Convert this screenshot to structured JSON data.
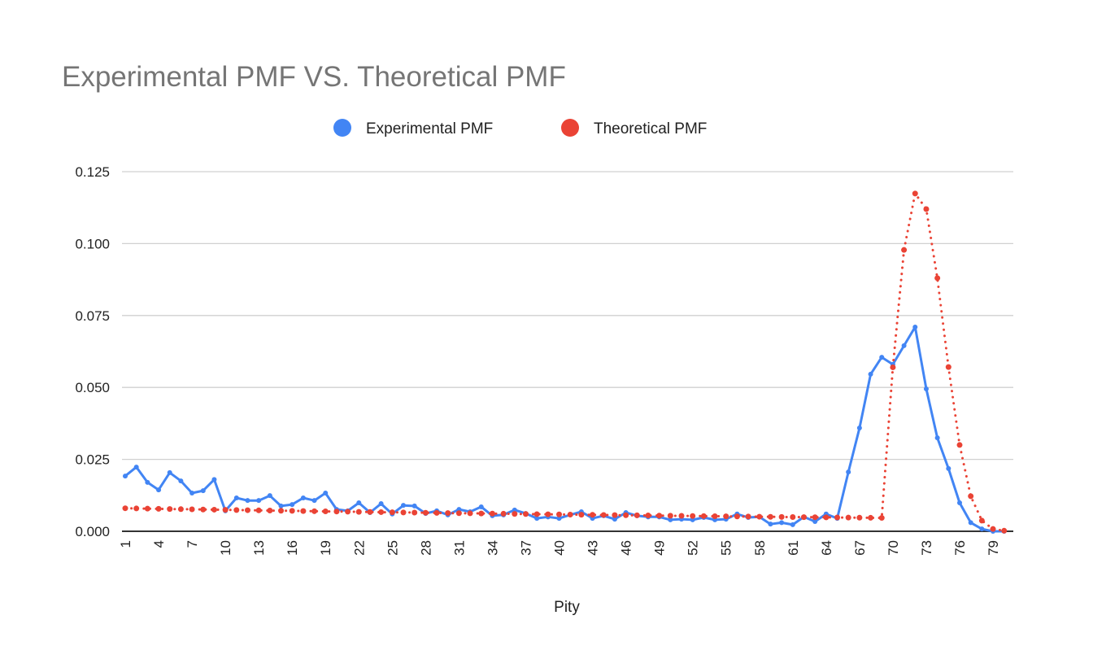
{
  "chart_data": {
    "type": "line",
    "title": "Experimental PMF VS. Theoretical PMF",
    "xlabel": "Pity",
    "ylabel": "",
    "ylim": [
      0,
      0.125
    ],
    "yticks": [
      "0.000",
      "0.025",
      "0.050",
      "0.075",
      "0.100",
      "0.125"
    ],
    "xticks": [
      "1",
      "4",
      "7",
      "10",
      "13",
      "16",
      "19",
      "22",
      "25",
      "28",
      "31",
      "34",
      "37",
      "40",
      "43",
      "46",
      "49",
      "52",
      "55",
      "58",
      "61",
      "64",
      "67",
      "70",
      "73",
      "76",
      "79"
    ],
    "grid": true,
    "legend_position": "top",
    "x": [
      1,
      2,
      3,
      4,
      5,
      6,
      7,
      8,
      9,
      10,
      11,
      12,
      13,
      14,
      15,
      16,
      17,
      18,
      19,
      20,
      21,
      22,
      23,
      24,
      25,
      26,
      27,
      28,
      29,
      30,
      31,
      32,
      33,
      34,
      35,
      36,
      37,
      38,
      39,
      40,
      41,
      42,
      43,
      44,
      45,
      46,
      47,
      48,
      49,
      50,
      51,
      52,
      53,
      54,
      55,
      56,
      57,
      58,
      59,
      60,
      61,
      62,
      63,
      64,
      65,
      66,
      67,
      68,
      69,
      70,
      71,
      72,
      73,
      74,
      75,
      76,
      77,
      78,
      79,
      80
    ],
    "series": [
      {
        "name": "Experimental PMF",
        "color": "#4285f4",
        "style": "solid",
        "values": [
          0.0192,
          0.0223,
          0.017,
          0.0144,
          0.0204,
          0.0175,
          0.0133,
          0.0141,
          0.018,
          0.0071,
          0.0116,
          0.0107,
          0.0107,
          0.0124,
          0.0088,
          0.0093,
          0.0116,
          0.0107,
          0.0133,
          0.0076,
          0.0071,
          0.0099,
          0.0065,
          0.0096,
          0.006,
          0.009,
          0.0088,
          0.0062,
          0.0071,
          0.0057,
          0.0076,
          0.0068,
          0.0085,
          0.0054,
          0.0057,
          0.0074,
          0.0062,
          0.0045,
          0.005,
          0.0045,
          0.0057,
          0.0068,
          0.0045,
          0.0054,
          0.0042,
          0.0065,
          0.0054,
          0.005,
          0.005,
          0.004,
          0.0042,
          0.004,
          0.0048,
          0.004,
          0.0042,
          0.006,
          0.0048,
          0.005,
          0.0025,
          0.003,
          0.0023,
          0.005,
          0.0034,
          0.006,
          0.0045,
          0.0206,
          0.0359,
          0.0546,
          0.0605,
          0.058,
          0.0645,
          0.071,
          0.0495,
          0.0325,
          0.0218,
          0.0099,
          0.003,
          0.0008,
          0.0,
          0.0
        ]
      },
      {
        "name": "Theoretical PMF",
        "color": "#ea4335",
        "style": "dotted",
        "values": [
          0.008,
          0.00794,
          0.00787,
          0.00781,
          0.00775,
          0.00769,
          0.00763,
          0.00757,
          0.00751,
          0.00745,
          0.00739,
          0.00733,
          0.00727,
          0.00721,
          0.00715,
          0.0071,
          0.00704,
          0.00698,
          0.00693,
          0.00687,
          0.00682,
          0.00676,
          0.00671,
          0.00666,
          0.0066,
          0.00655,
          0.0065,
          0.00645,
          0.0064,
          0.00634,
          0.00629,
          0.00624,
          0.00619,
          0.00615,
          0.0061,
          0.00605,
          0.006,
          0.00595,
          0.0059,
          0.00586,
          0.00581,
          0.00577,
          0.00572,
          0.00567,
          0.00563,
          0.00558,
          0.00554,
          0.0055,
          0.00545,
          0.00541,
          0.00537,
          0.00532,
          0.00528,
          0.00524,
          0.0052,
          0.00516,
          0.00512,
          0.00507,
          0.00503,
          0.00499,
          0.00495,
          0.00491,
          0.00488,
          0.00484,
          0.0048,
          0.00476,
          0.00472,
          0.00469,
          0.00465,
          0.057,
          0.0978,
          0.1174,
          0.112,
          0.088,
          0.0571,
          0.03,
          0.0122,
          0.0037,
          0.0008,
          0.0002
        ]
      }
    ]
  }
}
